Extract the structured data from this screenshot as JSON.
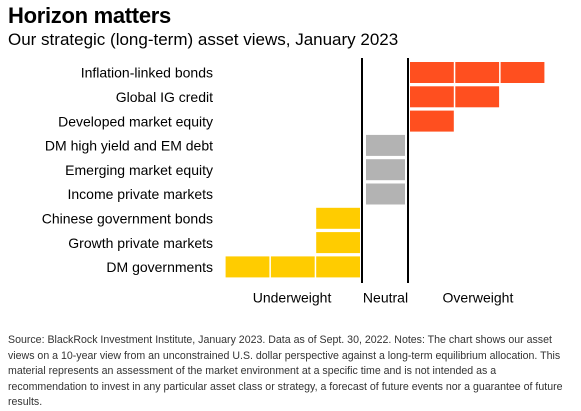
{
  "header": {
    "title": "Horizon matters",
    "subtitle": "Our strategic (long-term) asset views, January 2023"
  },
  "chart_data": {
    "type": "bar",
    "orientation": "horizontal",
    "categories": [
      "Inflation-linked bonds",
      "Global IG credit",
      "Developed market equity",
      "DM high yield and EM debt",
      "Emerging market equity",
      "Income private markets",
      "Chinese government bonds",
      "Growth private markets",
      "DM governments"
    ],
    "values": [
      3,
      2,
      1,
      0,
      0,
      0,
      -1,
      -1,
      -3
    ],
    "scale": [
      "Underweight",
      "Neutral",
      "Overweight"
    ],
    "xlim": [
      -3,
      3
    ],
    "grid": false,
    "legend": "none",
    "colors": {
      "overweight": "#ff4f1f",
      "neutral": "#b3b3b3",
      "underweight": "#ffcc00",
      "divider": "#000000"
    }
  },
  "footer": {
    "source": "Source: BlackRock Investment Institute, January 2023. Data as of Sept. 30, 2022. Notes: The chart shows our asset views on a 10-year view from an unconstrained U.S. dollar perspective against a long-term equilibrium allocation. This material represents an assessment of the market environment at a specific time and is not intended as a recommendation to invest in any particular asset class or strategy, a forecast of future events nor a guarantee of future results."
  }
}
